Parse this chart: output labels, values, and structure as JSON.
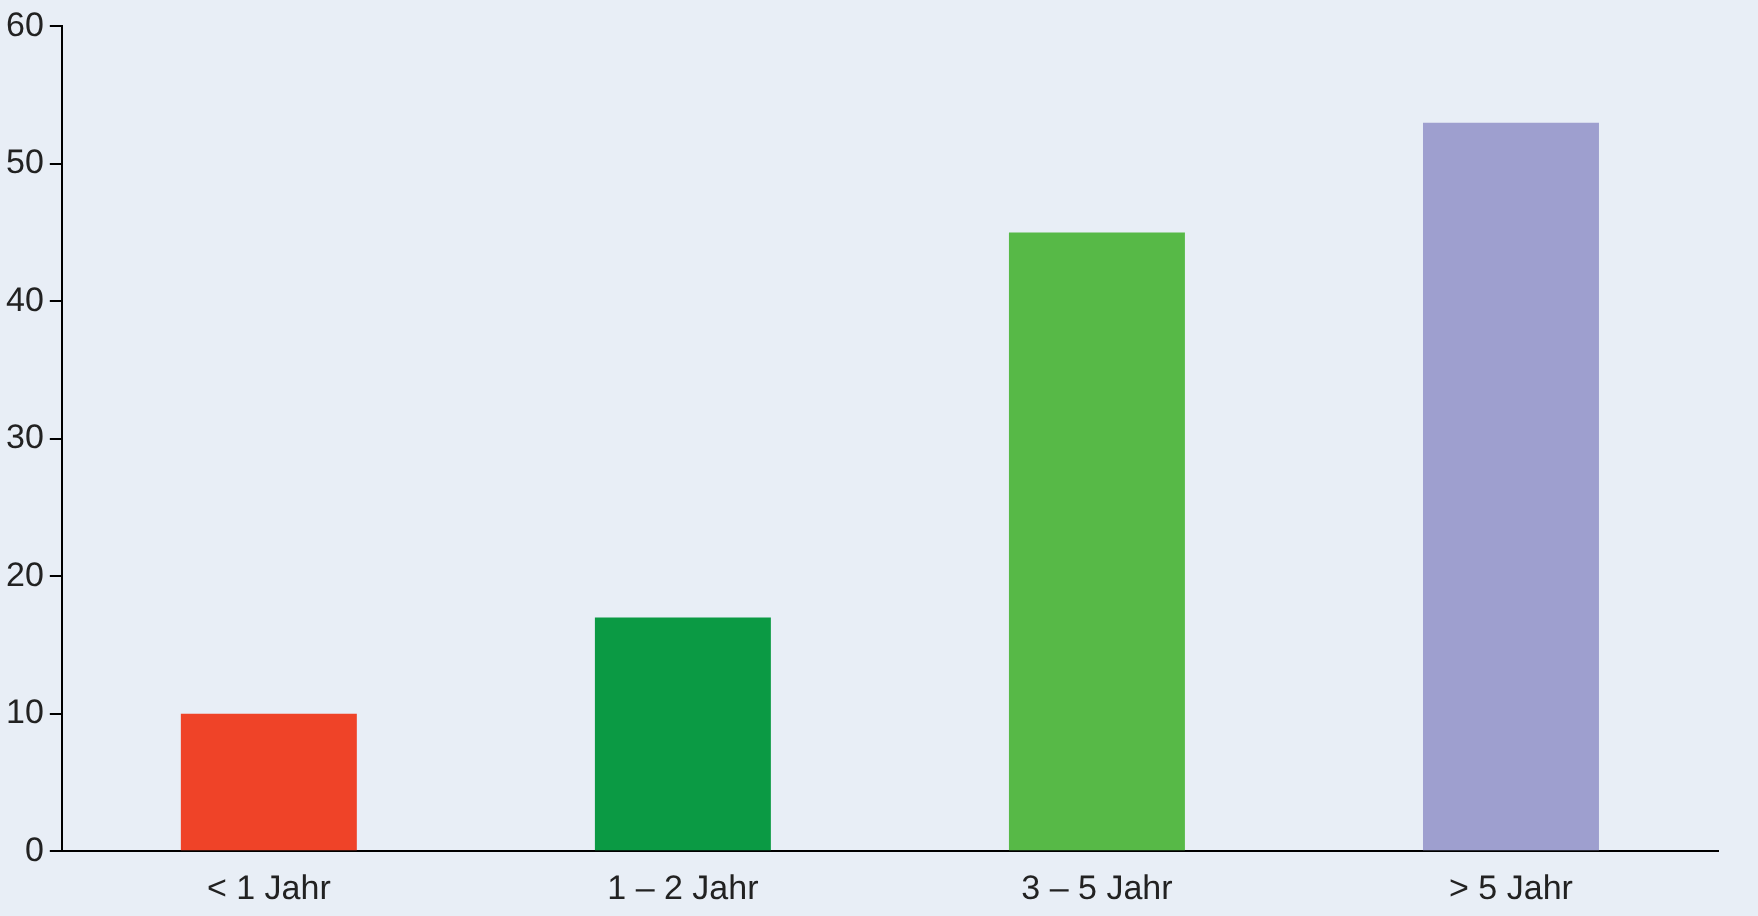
{
  "chart_data": {
    "type": "bar",
    "categories": [
      "< 1 Jahr",
      "1 – 2 Jahr",
      "3 – 5 Jahr",
      "> 5 Jahr"
    ],
    "values": [
      10,
      17,
      45,
      53
    ],
    "colors": [
      "#ef4328",
      "#0b9a44",
      "#57b947",
      "#9e9fcf"
    ],
    "ylim": [
      0,
      60
    ],
    "yticks": [
      0,
      10,
      20,
      30,
      40,
      50,
      60
    ],
    "grid": false,
    "legend": false
  }
}
